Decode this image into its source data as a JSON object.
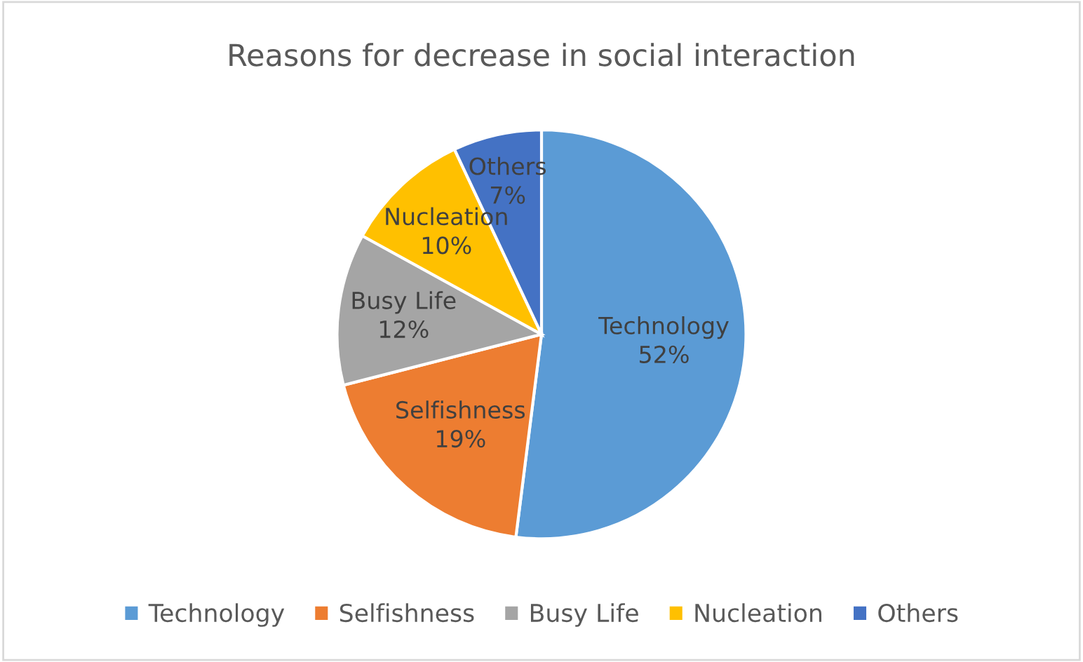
{
  "chart_data": {
    "type": "pie",
    "title": "Reasons for decrease in social interaction",
    "categories": [
      "Technology",
      "Selfishness",
      "Busy Life",
      "Nucleation",
      "Others"
    ],
    "values": [
      52,
      19,
      12,
      10,
      7
    ],
    "colors": [
      "#5b9bd5",
      "#ed7d31",
      "#a5a5a5",
      "#ffc000",
      "#4472c4"
    ],
    "value_labels": [
      "52%",
      "19%",
      "12%",
      "10%",
      "7%"
    ],
    "legend": "bottom"
  }
}
